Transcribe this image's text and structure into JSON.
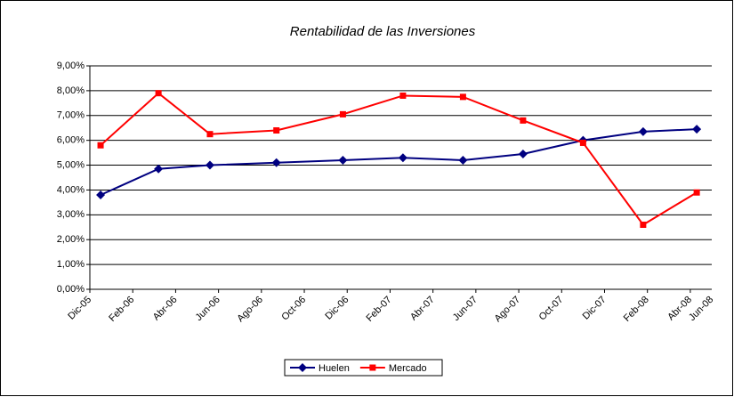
{
  "chart_data": {
    "type": "line",
    "title": "Rentabilidad de las Inversiones",
    "x": [
      [
        0.5,
        3.2,
        5.6,
        8.7,
        11.8,
        14.6,
        17.4,
        20.2,
        23.0,
        25.8,
        28.3
      ]
    ],
    "series": [
      {
        "name": "Huelen",
        "color": "#000080",
        "marker": "diamond",
        "x": [
          0.5,
          3.2,
          5.6,
          8.7,
          11.8,
          14.6,
          17.4,
          20.2,
          23.0,
          25.8,
          28.3
        ],
        "values": [
          3.8,
          4.85,
          5.0,
          5.1,
          5.2,
          5.3,
          5.2,
          5.45,
          6.0,
          6.35,
          6.45
        ]
      },
      {
        "name": "Mercado",
        "color": "#ff0000",
        "marker": "square",
        "x": [
          0.5,
          3.2,
          5.6,
          8.7,
          11.8,
          14.6,
          17.4,
          20.2,
          23.0,
          25.8,
          28.3
        ],
        "values": [
          5.8,
          7.9,
          6.25,
          6.4,
          7.05,
          7.8,
          7.75,
          6.8,
          5.9,
          2.6,
          3.9
        ]
      }
    ],
    "xlim": [
      0,
      29
    ],
    "xticks": [
      {
        "value": 0,
        "label": "Dic-05"
      },
      {
        "value": 2,
        "label": "Feb-06"
      },
      {
        "value": 4,
        "label": "Abr-06"
      },
      {
        "value": 6,
        "label": "Jun-06"
      },
      {
        "value": 8,
        "label": "Ago-06"
      },
      {
        "value": 10,
        "label": "Oct-06"
      },
      {
        "value": 12,
        "label": "Dic-06"
      },
      {
        "value": 14,
        "label": "Feb-07"
      },
      {
        "value": 16,
        "label": "Abr-07"
      },
      {
        "value": 18,
        "label": "Jun-07"
      },
      {
        "value": 20,
        "label": "Ago-07"
      },
      {
        "value": 22,
        "label": "Oct-07"
      },
      {
        "value": 24,
        "label": "Dic-07"
      },
      {
        "value": 26,
        "label": "Feb-08"
      },
      {
        "value": 28,
        "label": "Abr-08"
      },
      {
        "value": 30,
        "label": "Jun-08"
      }
    ],
    "ylim": [
      0,
      9
    ],
    "yticks": [
      {
        "value": 0,
        "label": "0,00%"
      },
      {
        "value": 1,
        "label": "1,00%"
      },
      {
        "value": 2,
        "label": "2,00%"
      },
      {
        "value": 3,
        "label": "3,00%"
      },
      {
        "value": 4,
        "label": "4,00%"
      },
      {
        "value": 5,
        "label": "5,00%"
      },
      {
        "value": 6,
        "label": "6,00%"
      },
      {
        "value": 7,
        "label": "7,00%"
      },
      {
        "value": 8,
        "label": "8,00%"
      },
      {
        "value": 9,
        "label": "9,00%"
      }
    ],
    "grid": true,
    "legend": "bottom"
  }
}
